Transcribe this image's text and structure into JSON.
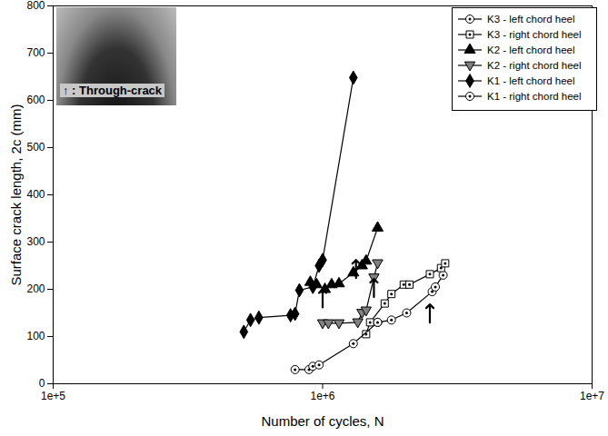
{
  "chart_data": {
    "type": "line",
    "xlabel": "Number of cycles, N",
    "ylabel": "Surface crack length, 2c (mm)",
    "log": "x",
    "grid": false,
    "legend": "top-right",
    "xlim": [
      100000,
      10000000
    ],
    "xticks": [
      {
        "value": 100000,
        "label": "1e+5"
      },
      {
        "value": 1000000,
        "label": "1e+6"
      },
      {
        "value": 10000000,
        "label": "1e+7"
      }
    ],
    "ylim": [
      0,
      800
    ],
    "yticks": [
      0,
      100,
      200,
      300,
      400,
      500,
      600,
      700,
      800
    ],
    "annotation": "↑ : Through-crack",
    "through_crack": {
      "x": [
        1000000,
        1330000,
        1550000,
        2500000
      ],
      "y": [
        200,
        262,
        222,
        168
      ]
    },
    "series": [
      {
        "name": "K3 - left chord heel",
        "color": "#000000",
        "marker": "circle_dot",
        "x": [
          1600000,
          1800000,
          2050000,
          2550000,
          2620000,
          2800000
        ],
        "values": [
          130,
          135,
          150,
          195,
          205,
          230
        ]
      },
      {
        "name": "K3 - right chord heel",
        "color": "#000000",
        "marker": "square_dot",
        "x": [
          1450000,
          1500000,
          1700000,
          1800000,
          2000000,
          2100000,
          2500000,
          2750000,
          2850000
        ],
        "values": [
          105,
          130,
          170,
          190,
          210,
          210,
          232,
          245,
          255
        ]
      },
      {
        "name": "K2 - left chord heel",
        "color": "#000000",
        "marker": "triangle",
        "x": [
          900000,
          950000,
          1020000,
          1080000,
          1150000,
          1300000,
          1400000,
          1450000,
          1600000
        ],
        "values": [
          215,
          210,
          200,
          210,
          212,
          235,
          250,
          260,
          330
        ]
      },
      {
        "name": "K2 - right chord heel",
        "color": "#808080",
        "marker": "triangle_down",
        "x": [
          1000000,
          1050000,
          1150000,
          1350000,
          1400000,
          1450000,
          1550000,
          1600000
        ],
        "values": [
          128,
          128,
          128,
          130,
          150,
          155,
          225,
          255
        ]
      },
      {
        "name": "K1 - left chord heel",
        "color": "#000000",
        "marker": "diamond",
        "x": [
          510000,
          540000,
          580000,
          760000,
          790000,
          820000,
          920000,
          970000,
          1000000,
          1300000
        ],
        "values": [
          110,
          135,
          140,
          145,
          148,
          198,
          205,
          250,
          262,
          648
        ]
      },
      {
        "name": "K1 - right chord heel",
        "color": "#000000",
        "marker": "circle_dot",
        "x": [
          790000,
          890000,
          920000,
          970000,
          1300000,
          1600000
        ],
        "values": [
          30,
          30,
          37,
          40,
          85,
          130
        ]
      }
    ]
  }
}
